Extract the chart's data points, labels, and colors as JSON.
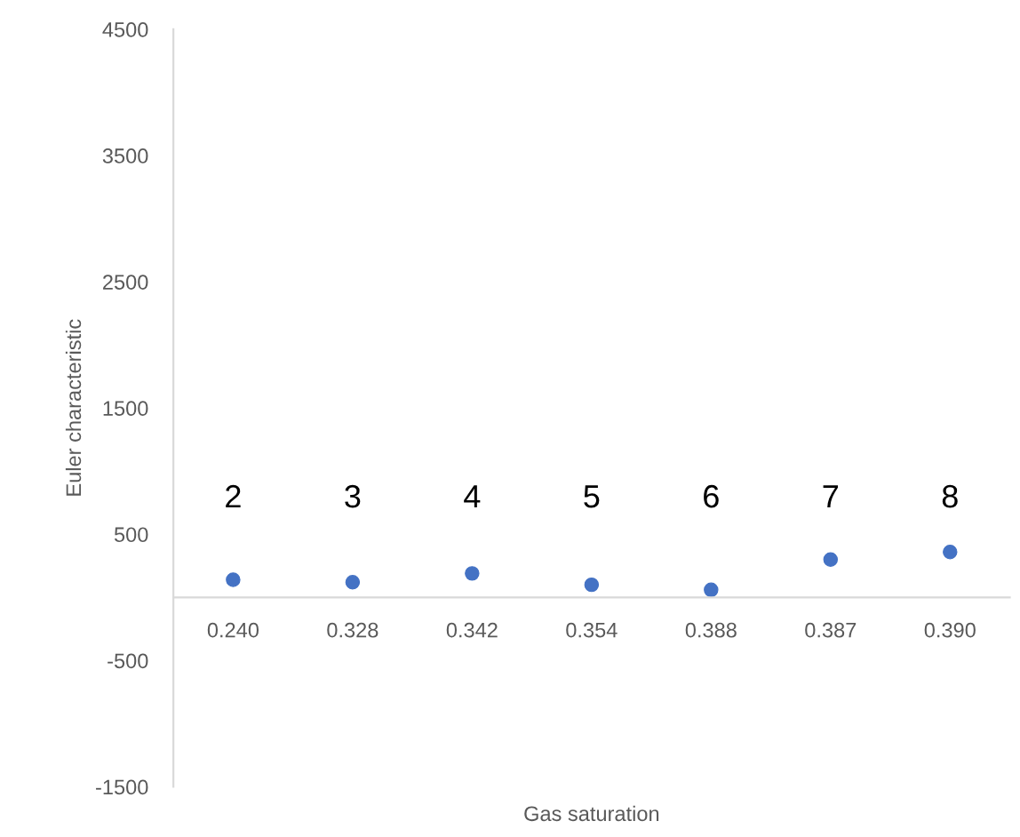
{
  "chart_data": {
    "type": "scatter",
    "xlabel": "Gas saturation",
    "ylabel": "Euler characteristic",
    "categories": [
      "0.240",
      "0.328",
      "0.342",
      "0.354",
      "0.388",
      "0.387",
      "0.390"
    ],
    "values": [
      140,
      120,
      190,
      100,
      60,
      300,
      360
    ],
    "color": "#4472c4",
    "ylim": [
      -1500,
      4500
    ],
    "yticks": [
      -1500,
      -500,
      500,
      1500,
      2500,
      3500,
      4500
    ],
    "marker": "circle",
    "grid": false,
    "legend": false,
    "annotations": [
      "2",
      "3",
      "4",
      "5",
      "6",
      "7",
      "8"
    ]
  }
}
